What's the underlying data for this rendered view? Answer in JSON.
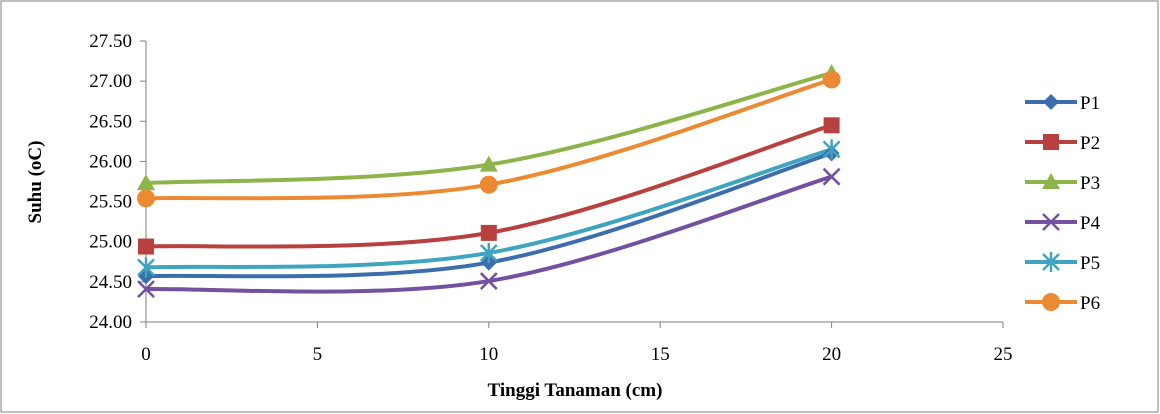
{
  "chart_data": {
    "type": "line",
    "title": "",
    "xlabel": "Tinggi Tanaman (cm)",
    "ylabel": "Suhu (oC)",
    "xlim": [
      0,
      25
    ],
    "ylim": [
      24.0,
      27.5
    ],
    "x_ticks": [
      "0",
      "5",
      "10",
      "15",
      "20",
      "25"
    ],
    "y_ticks": [
      "24.00",
      "24.50",
      "25.00",
      "25.50",
      "26.00",
      "26.50",
      "27.00",
      "27.50"
    ],
    "x_tick_values": [
      0,
      5,
      10,
      15,
      20,
      25
    ],
    "y_tick_values": [
      24.0,
      24.5,
      25.0,
      25.5,
      26.0,
      26.5,
      27.0,
      27.5
    ],
    "grid": false,
    "smooth": true,
    "legend_position": "right",
    "x": [
      0,
      10,
      20
    ],
    "series": [
      {
        "name": "P1",
        "values": [
          24.57,
          24.74,
          26.1
        ],
        "color": "#3C6EAD",
        "marker": "diamond"
      },
      {
        "name": "P2",
        "values": [
          24.94,
          25.11,
          26.45
        ],
        "color": "#B8413F",
        "marker": "square"
      },
      {
        "name": "P3",
        "values": [
          25.73,
          25.96,
          27.1
        ],
        "color": "#8DB44A",
        "marker": "triangle"
      },
      {
        "name": "P4",
        "values": [
          24.41,
          24.51,
          25.81
        ],
        "color": "#7351A0",
        "marker": "x"
      },
      {
        "name": "P5",
        "values": [
          24.68,
          24.86,
          26.15
        ],
        "color": "#3FA4BE",
        "marker": "star"
      },
      {
        "name": "P6",
        "values": [
          25.54,
          25.71,
          27.02
        ],
        "color": "#EC8A33",
        "marker": "circle"
      }
    ]
  }
}
